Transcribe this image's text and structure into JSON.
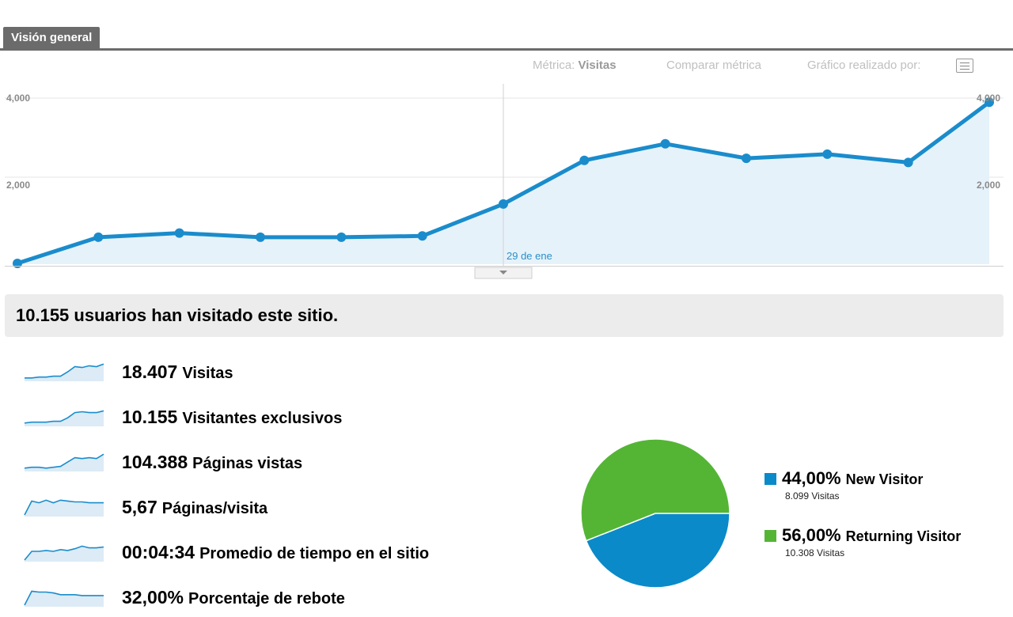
{
  "tab": {
    "label": "Visión general"
  },
  "toolbar": {
    "metric_prefix": "Métrica:",
    "metric_value": "Visitas",
    "compare": "Comparar métrica",
    "chart_by": "Gráfico realizado por:",
    "chart_by_icon": "list-icon"
  },
  "chart_data": {
    "type": "area",
    "y_ticks_left": [
      "4,000",
      "2,000"
    ],
    "y_ticks_right": [
      "4,000",
      "2,000"
    ],
    "ylim": [
      0,
      4000
    ],
    "hover_label": "29 de ene",
    "hover_index": 6,
    "values": [
      20,
      650,
      750,
      650,
      650,
      680,
      1450,
      2500,
      2900,
      2550,
      2650,
      2450,
      3900
    ],
    "colors": {
      "line": "#1a8ccc",
      "fill": "#e6f2fa",
      "grid": "#e6e6e6"
    }
  },
  "summary": {
    "text": "10.155 usuarios han visitado este sitio."
  },
  "metrics": [
    {
      "value": "18.407",
      "label": "Visitas",
      "spark": [
        0.1,
        0.1,
        0.15,
        0.15,
        0.2,
        0.2,
        0.45,
        0.75,
        0.7,
        0.8,
        0.75,
        0.9
      ]
    },
    {
      "value": "10.155",
      "label": "Visitantes exclusivos",
      "spark": [
        0.1,
        0.15,
        0.15,
        0.15,
        0.2,
        0.2,
        0.4,
        0.7,
        0.75,
        0.7,
        0.7,
        0.8
      ]
    },
    {
      "value": "104.388",
      "label": "Páginas vistas",
      "spark": [
        0.1,
        0.15,
        0.15,
        0.1,
        0.15,
        0.2,
        0.45,
        0.7,
        0.65,
        0.7,
        0.65,
        0.9
      ]
    },
    {
      "value": "5,67",
      "label": "Páginas/visita",
      "spark": [
        0.0,
        0.8,
        0.7,
        0.85,
        0.7,
        0.85,
        0.8,
        0.75,
        0.75,
        0.7,
        0.7,
        0.7
      ]
    },
    {
      "value": "00:04:34",
      "label": "Promedio de tiempo en el sitio",
      "spark": [
        0.0,
        0.5,
        0.5,
        0.55,
        0.5,
        0.6,
        0.55,
        0.65,
        0.8,
        0.7,
        0.7,
        0.75
      ]
    },
    {
      "value": "32,00%",
      "label": "Porcentaje de rebote",
      "spark": [
        0.0,
        0.8,
        0.75,
        0.75,
        0.7,
        0.6,
        0.6,
        0.6,
        0.55,
        0.55,
        0.55,
        0.55
      ]
    }
  ],
  "pie_data": {
    "slices": [
      {
        "pct": "44,00%",
        "label": "New Visitor",
        "sub": "8.099 Visitas",
        "fraction": 0.44,
        "color": "#0a8ac9"
      },
      {
        "pct": "56,00%",
        "label": "Returning Visitor",
        "sub": "10.308 Visitas",
        "fraction": 0.56,
        "color": "#54b535"
      }
    ]
  }
}
